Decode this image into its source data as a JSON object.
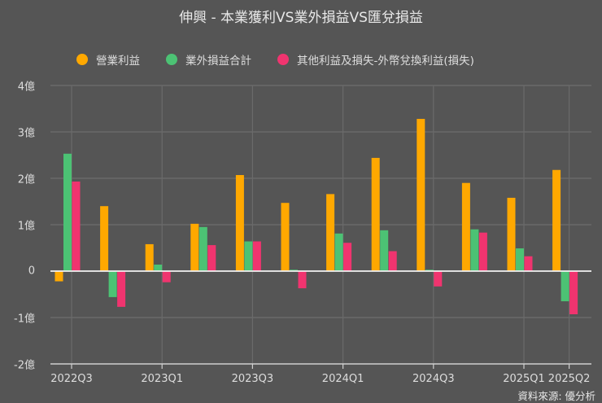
{
  "title": "伸興 - 本業獲利VS業外損益VS匯兌損益",
  "source": "資料來源: 優分析",
  "colors": {
    "background": "#555555",
    "grid": "#6a6a6a",
    "zero_line": "#f2f2f2",
    "operating_income": "#ffa800",
    "non_operating_total": "#4cc274",
    "fx_gain_loss": "#f0346f"
  },
  "legend": [
    {
      "label": "營業利益",
      "color": "#ffa800"
    },
    {
      "label": "業外損益合計",
      "color": "#4cc274"
    },
    {
      "label": "其他利益及損失-外幣兌換利益(損失)",
      "color": "#f0346f"
    }
  ],
  "y_axis": {
    "ticks": [
      {
        "value": 4,
        "label": "4億"
      },
      {
        "value": 3,
        "label": "3億"
      },
      {
        "value": 2,
        "label": "2億"
      },
      {
        "value": 1,
        "label": "1億"
      },
      {
        "value": 0,
        "label": "0"
      },
      {
        "value": -1,
        "label": "-1億"
      },
      {
        "value": -2,
        "label": "-2億"
      }
    ]
  },
  "x_axis": {
    "tick_labels": [
      {
        "index": 0,
        "label": "2022Q3"
      },
      {
        "index": 2,
        "label": "2023Q1"
      },
      {
        "index": 4,
        "label": "2023Q3"
      },
      {
        "index": 6,
        "label": "2024Q1"
      },
      {
        "index": 8,
        "label": "2024Q3"
      },
      {
        "index": 10,
        "label": "2025Q1"
      },
      {
        "index": 11,
        "label": "2025Q2"
      }
    ]
  },
  "chart_data": {
    "type": "bar",
    "title": "伸興 - 本業獲利VS業外損益VS匯兌損益",
    "xlabel": "",
    "ylabel": "億",
    "ylim": [
      -2,
      4
    ],
    "grid": true,
    "legend_position": "top",
    "categories": [
      "2022Q3",
      "2022Q4",
      "2023Q1",
      "2023Q2",
      "2023Q3",
      "2023Q4",
      "2024Q1",
      "2024Q2",
      "2024Q3",
      "2024Q4",
      "2025Q1",
      "2025Q2"
    ],
    "series": [
      {
        "name": "營業利益",
        "color": "#ffa800",
        "values": [
          -0.22,
          1.4,
          0.58,
          1.02,
          2.07,
          1.47,
          1.66,
          2.44,
          3.28,
          1.9,
          1.58,
          2.18
        ]
      },
      {
        "name": "業外損益合計",
        "color": "#4cc274",
        "values": [
          2.53,
          -0.56,
          0.14,
          0.95,
          0.64,
          0.03,
          0.81,
          0.88,
          0.03,
          0.9,
          0.49,
          -0.65
        ]
      },
      {
        "name": "其他利益及損失-外幣兌換利益(損失)",
        "color": "#f0346f",
        "values": [
          1.93,
          -0.77,
          -0.24,
          0.56,
          0.64,
          -0.37,
          0.61,
          0.43,
          -0.33,
          0.83,
          0.32,
          -0.93
        ]
      }
    ]
  }
}
